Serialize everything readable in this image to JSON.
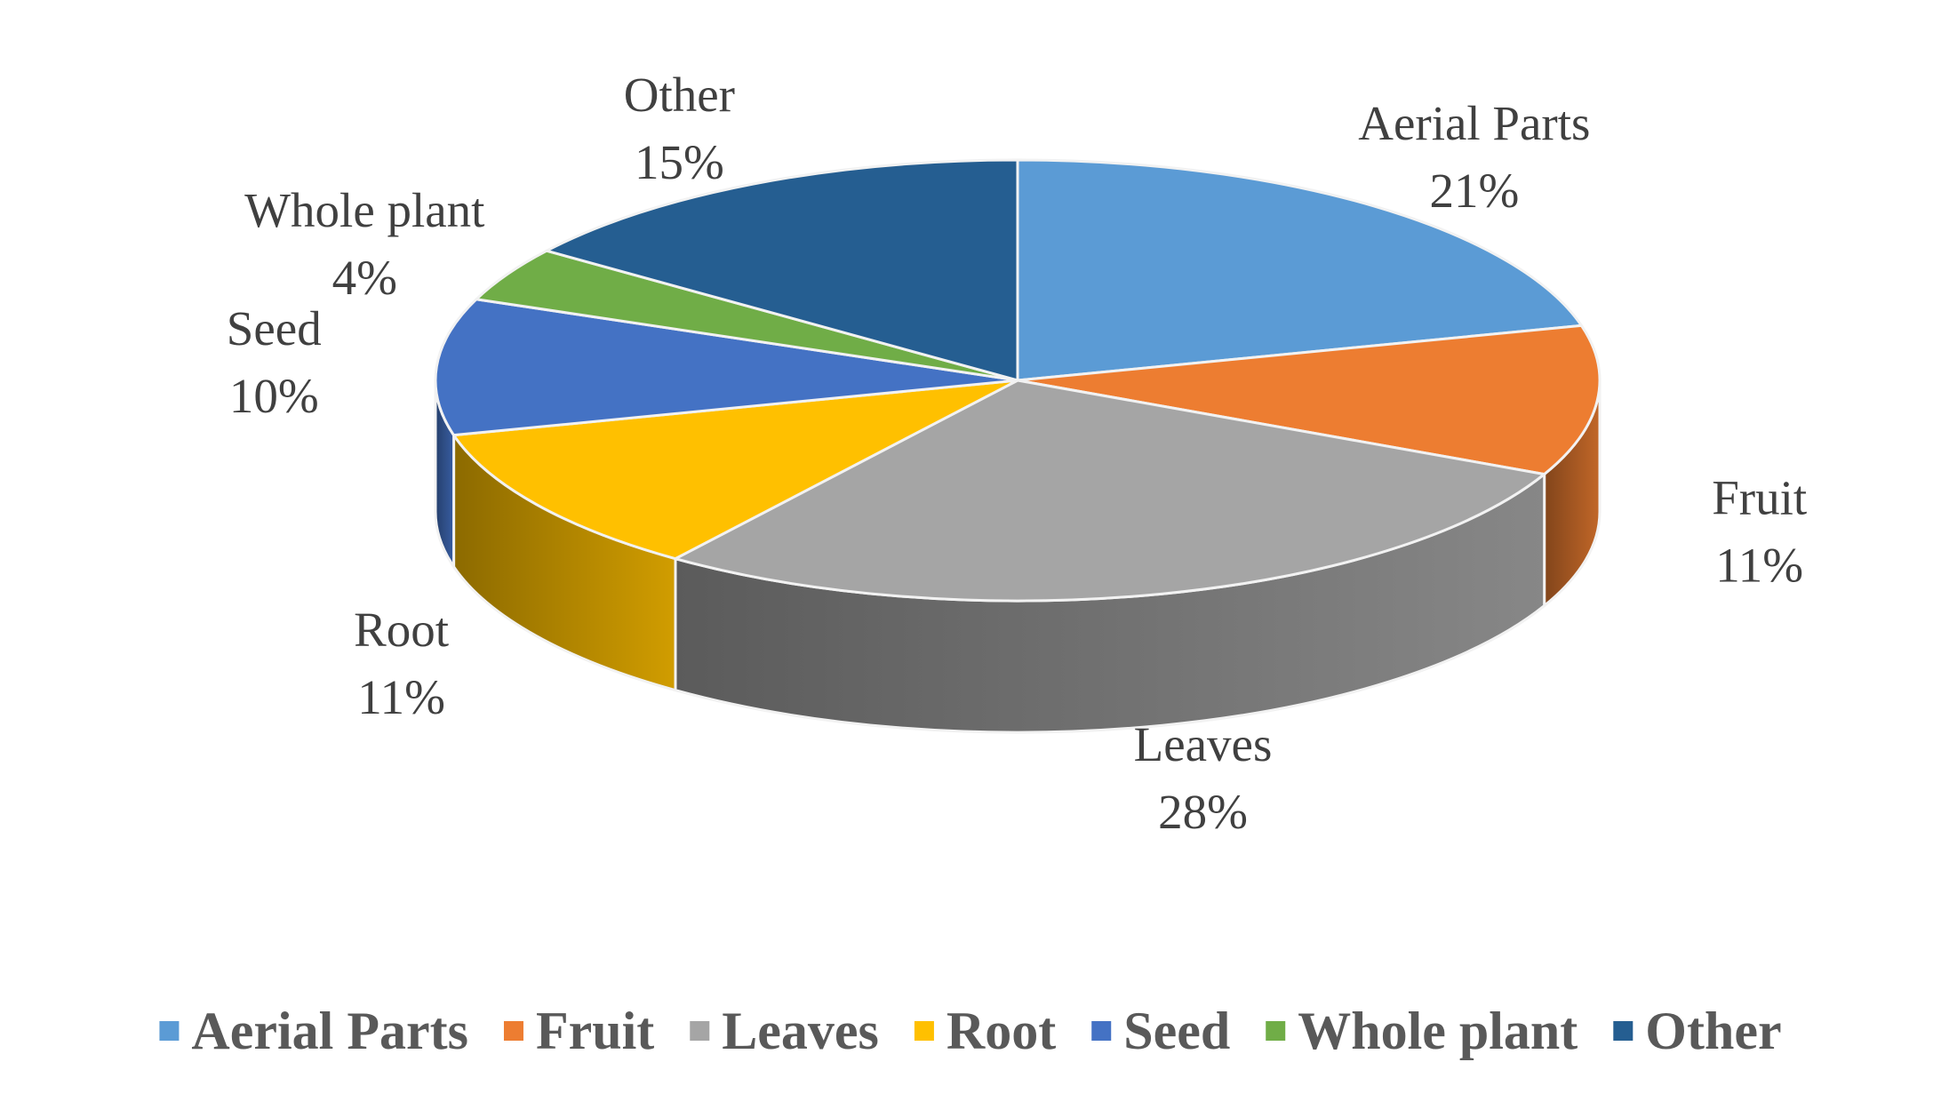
{
  "chart_data": {
    "type": "pie",
    "categories": [
      "Aerial Parts",
      "Fruit",
      "Leaves",
      "Root",
      "Seed",
      "Whole plant",
      "Other"
    ],
    "values": [
      21,
      11,
      28,
      11,
      10,
      4,
      15
    ],
    "value_labels": [
      "21%",
      "11%",
      "28%",
      "11%",
      "10%",
      "4%",
      "15%"
    ],
    "colors": [
      "#5B9BD5",
      "#ED7D31",
      "#A5A5A5",
      "#FFC000",
      "#4472C4",
      "#70AD47",
      "#255E91"
    ],
    "legend_position": "bottom",
    "style": "3d"
  }
}
